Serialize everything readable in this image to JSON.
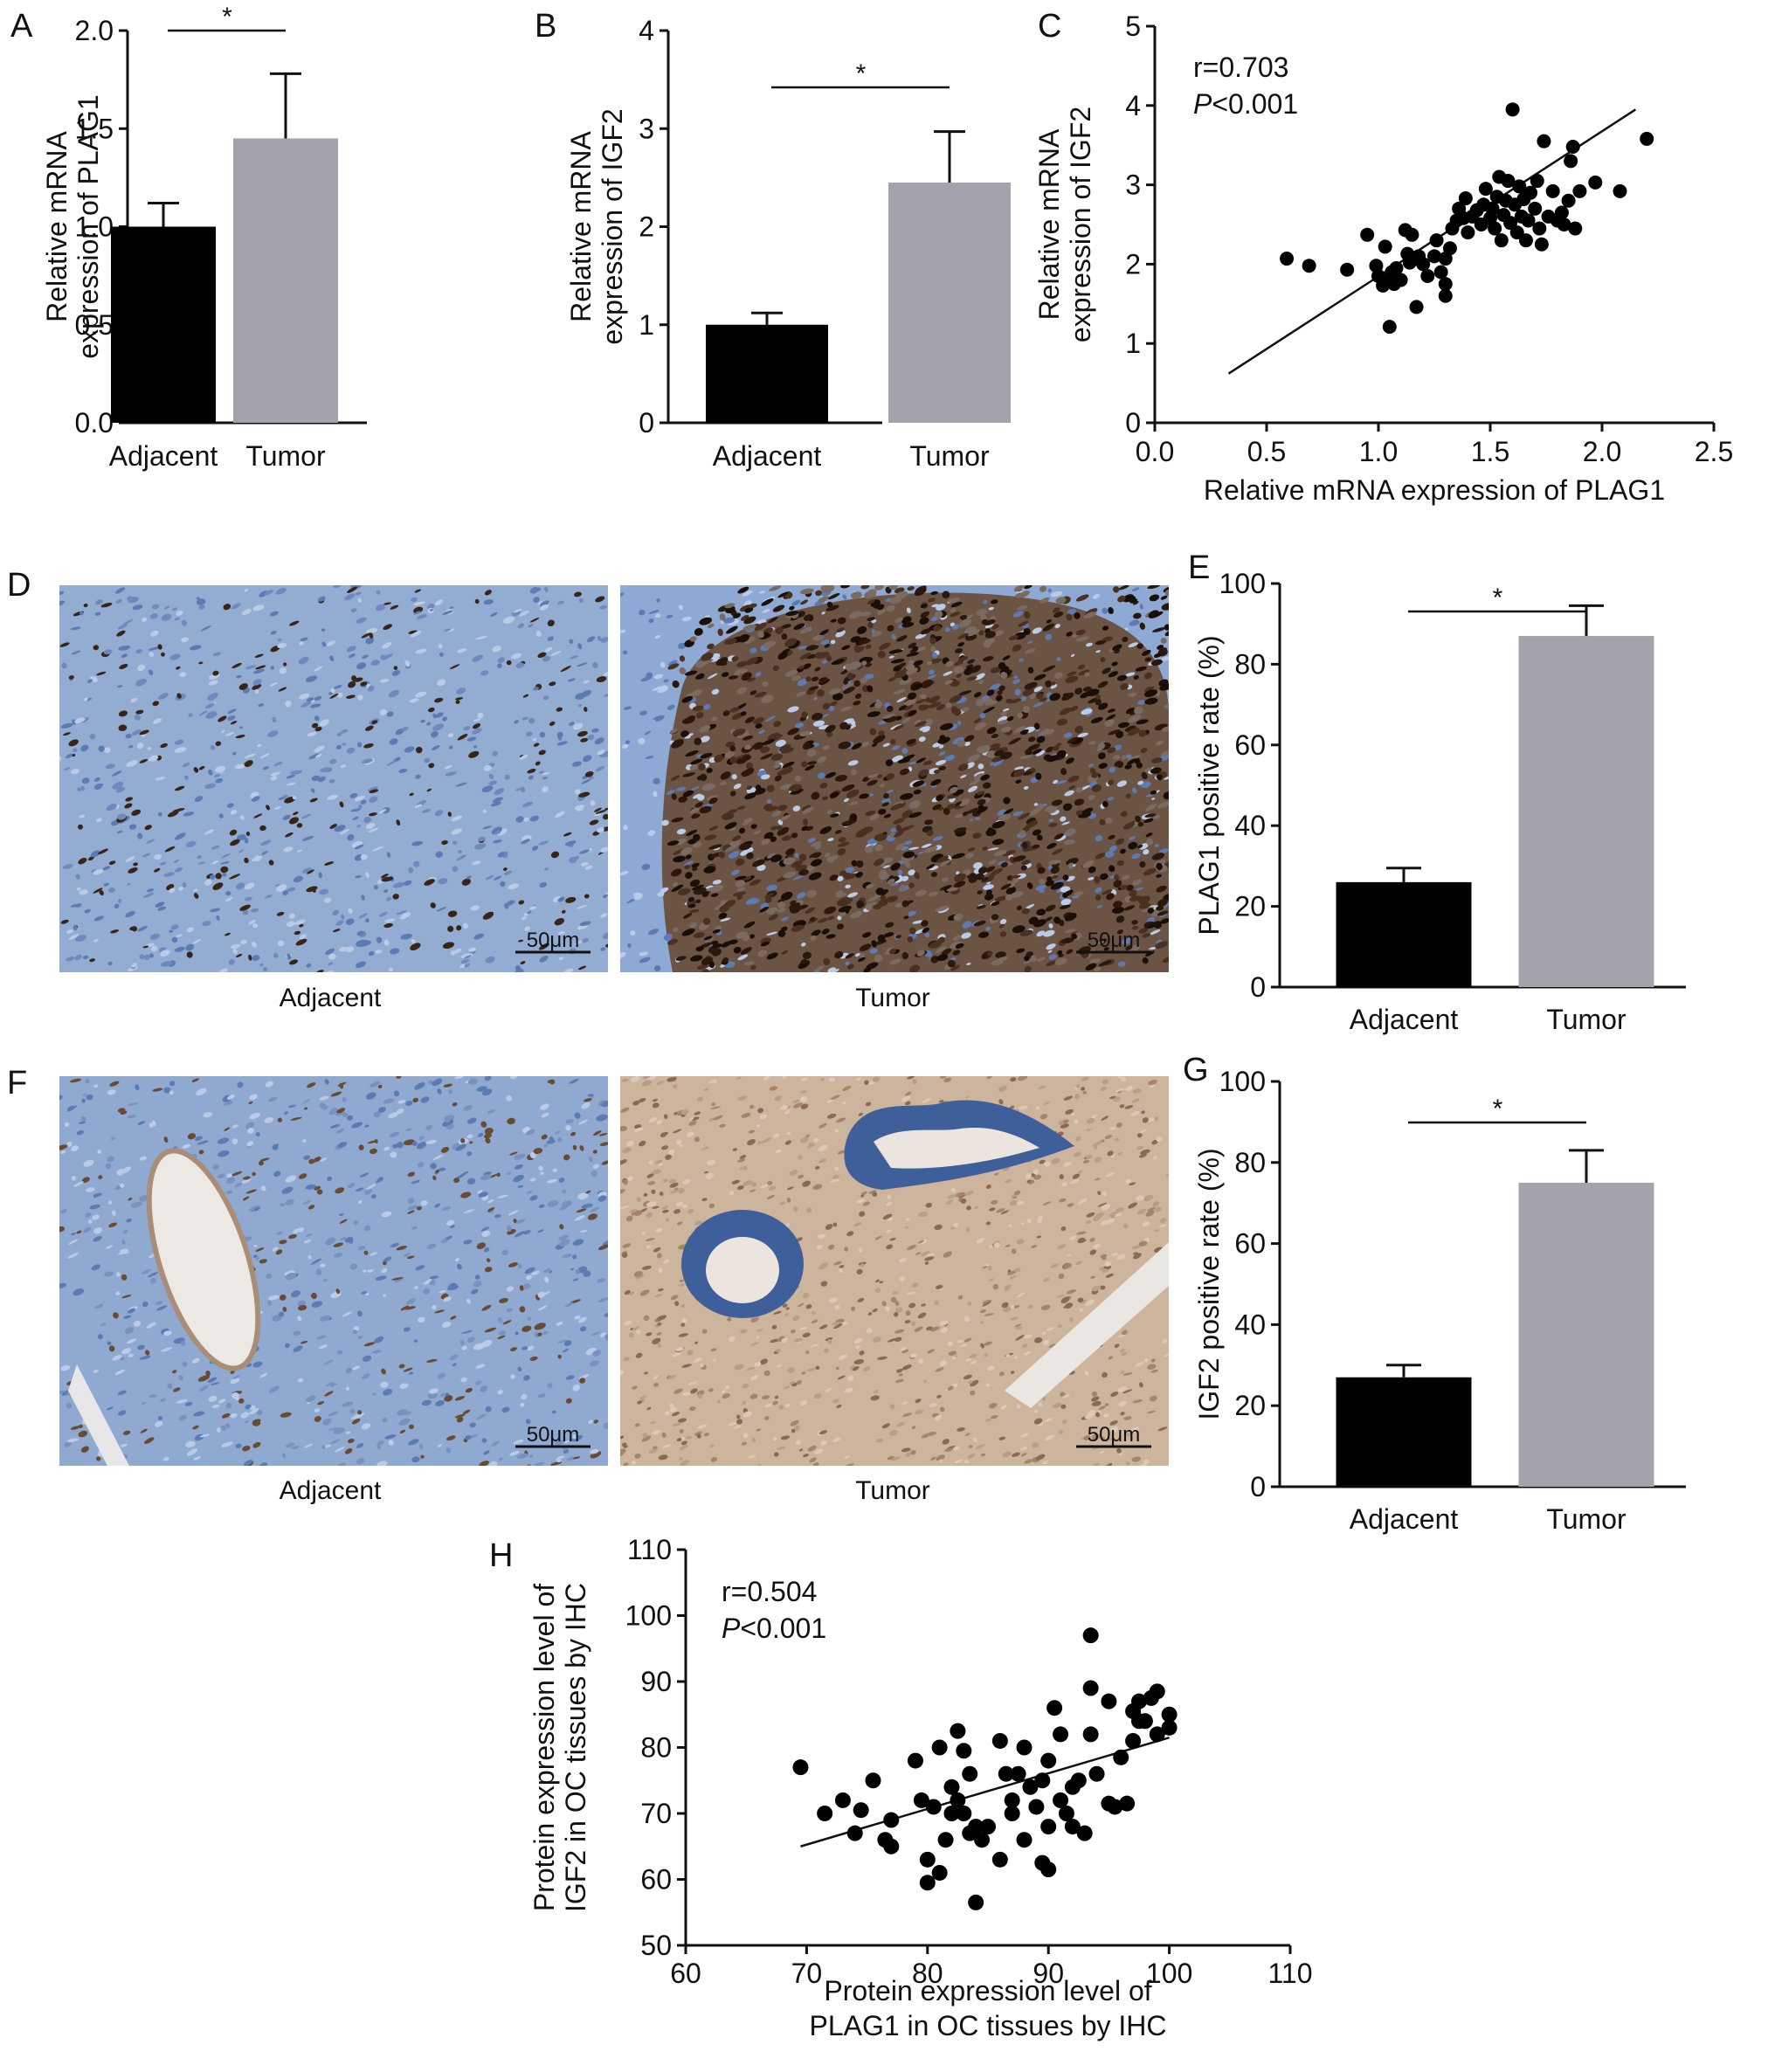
{
  "panels": {
    "A": {
      "letter": "A"
    },
    "B": {
      "letter": "B"
    },
    "C": {
      "letter": "C"
    },
    "D": {
      "letter": "D",
      "left_label": "Adjacent",
      "right_label": "Tumor",
      "scale_left": "50μm",
      "scale_right": "50μm"
    },
    "E": {
      "letter": "E"
    },
    "F": {
      "letter": "F",
      "left_label": "Adjacent",
      "right_label": "Tumor",
      "scale_left": "50μm",
      "scale_right": "50μm"
    },
    "G": {
      "letter": "G"
    },
    "H": {
      "letter": "H"
    }
  },
  "colors": {
    "adjacent_bar": "#000000",
    "tumor_bar": "#a3a3ab",
    "he_blue": "#8aa6cf",
    "dab_brown": "#3a2416",
    "ihc_beige": "#c8ad92"
  },
  "chart_data": [
    {
      "id": "A",
      "type": "bar",
      "categories": [
        "Adjacent",
        "Tumor"
      ],
      "values": [
        1.0,
        1.45
      ],
      "errors": [
        0.12,
        0.33
      ],
      "ylabel": [
        "Relative mRNA",
        "expression of PLAG1"
      ],
      "ylim": [
        0,
        2.0
      ],
      "yticks": [
        "0.0",
        "0.5",
        "1.0",
        "1.5",
        "2.0"
      ],
      "significance": "*"
    },
    {
      "id": "B",
      "type": "bar",
      "categories": [
        "Adjacent",
        "Tumor"
      ],
      "values": [
        1.0,
        2.45
      ],
      "errors": [
        0.12,
        0.52
      ],
      "ylabel": [
        "Relative mRNA",
        "expression of IGF2"
      ],
      "ylim": [
        0,
        4
      ],
      "yticks": [
        "0",
        "1",
        "2",
        "3",
        "4"
      ],
      "significance": "*"
    },
    {
      "id": "C",
      "type": "scatter",
      "xlabel": "Relative mRNA expression of PLAG1",
      "ylabel": [
        "Relative mRNA",
        "expression of IGF2"
      ],
      "xlim": [
        0.0,
        2.5
      ],
      "ylim": [
        0,
        5
      ],
      "xticks": [
        "0.0",
        "0.5",
        "1.0",
        "1.5",
        "2.0",
        "2.5"
      ],
      "yticks": [
        "0",
        "1",
        "2",
        "3",
        "4",
        "5"
      ],
      "stat_r": "r=0.703",
      "stat_p_letter": "P",
      "stat_p_rest": "<0.001",
      "fit": {
        "x": [
          0.33,
          2.15
        ],
        "y": [
          0.62,
          3.95
        ]
      },
      "points": [
        [
          0.59,
          2.07
        ],
        [
          0.69,
          1.98
        ],
        [
          0.86,
          1.93
        ],
        [
          0.95,
          2.37
        ],
        [
          0.99,
          1.98
        ],
        [
          1.0,
          1.85
        ],
        [
          1.02,
          1.73
        ],
        [
          1.03,
          2.22
        ],
        [
          1.04,
          1.78
        ],
        [
          1.05,
          1.21
        ],
        [
          1.06,
          1.9
        ],
        [
          1.07,
          1.75
        ],
        [
          1.08,
          1.95
        ],
        [
          1.1,
          1.8
        ],
        [
          1.12,
          2.43
        ],
        [
          1.13,
          2.13
        ],
        [
          1.14,
          2.02
        ],
        [
          1.15,
          2.37
        ],
        [
          1.17,
          1.46
        ],
        [
          1.18,
          2.1
        ],
        [
          1.2,
          2.0
        ],
        [
          1.22,
          1.85
        ],
        [
          1.25,
          2.1
        ],
        [
          1.26,
          2.3
        ],
        [
          1.28,
          1.9
        ],
        [
          1.3,
          1.6
        ],
        [
          1.3,
          1.75
        ],
        [
          1.3,
          2.07
        ],
        [
          1.32,
          2.2
        ],
        [
          1.33,
          2.45
        ],
        [
          1.35,
          2.55
        ],
        [
          1.36,
          2.7
        ],
        [
          1.38,
          2.58
        ],
        [
          1.39,
          2.83
        ],
        [
          1.4,
          2.4
        ],
        [
          1.42,
          2.6
        ],
        [
          1.44,
          2.68
        ],
        [
          1.46,
          2.5
        ],
        [
          1.47,
          2.75
        ],
        [
          1.48,
          2.95
        ],
        [
          1.5,
          2.58
        ],
        [
          1.51,
          2.7
        ],
        [
          1.52,
          2.45
        ],
        [
          1.53,
          2.85
        ],
        [
          1.54,
          3.1
        ],
        [
          1.55,
          2.3
        ],
        [
          1.56,
          2.62
        ],
        [
          1.57,
          2.8
        ],
        [
          1.58,
          3.05
        ],
        [
          1.59,
          2.52
        ],
        [
          1.6,
          3.95
        ],
        [
          1.61,
          2.75
        ],
        [
          1.62,
          2.4
        ],
        [
          1.63,
          2.98
        ],
        [
          1.64,
          2.6
        ],
        [
          1.65,
          2.82
        ],
        [
          1.66,
          2.3
        ],
        [
          1.67,
          2.55
        ],
        [
          1.68,
          2.9
        ],
        [
          1.7,
          2.7
        ],
        [
          1.71,
          3.05
        ],
        [
          1.72,
          2.45
        ],
        [
          1.73,
          2.25
        ],
        [
          1.74,
          3.55
        ],
        [
          1.76,
          2.6
        ],
        [
          1.78,
          2.92
        ],
        [
          1.8,
          2.55
        ],
        [
          1.82,
          2.65
        ],
        [
          1.83,
          2.5
        ],
        [
          1.85,
          2.8
        ],
        [
          1.86,
          3.3
        ],
        [
          1.87,
          3.48
        ],
        [
          1.88,
          2.45
        ],
        [
          1.9,
          2.92
        ],
        [
          1.97,
          3.03
        ],
        [
          2.08,
          2.92
        ],
        [
          2.2,
          3.58
        ]
      ]
    },
    {
      "id": "E",
      "type": "bar",
      "categories": [
        "Adjacent",
        "Tumor"
      ],
      "values": [
        26.0,
        87.0
      ],
      "errors": [
        3.5,
        7.5
      ],
      "ylabel": [
        "PLAG1 positive rate (%)"
      ],
      "ylim": [
        0,
        100
      ],
      "yticks": [
        "0",
        "20",
        "40",
        "60",
        "80",
        "100"
      ],
      "significance": "*"
    },
    {
      "id": "G",
      "type": "bar",
      "categories": [
        "Adjacent",
        "Tumor"
      ],
      "values": [
        27.0,
        75.0
      ],
      "errors": [
        3.0,
        8.0
      ],
      "ylabel": [
        "IGF2 positive rate (%)"
      ],
      "ylim": [
        0,
        100
      ],
      "yticks": [
        "0",
        "20",
        "40",
        "60",
        "80",
        "100"
      ],
      "significance": "*"
    },
    {
      "id": "H",
      "type": "scatter",
      "xlabel": [
        "Protein expression level of",
        "PLAG1 in OC tissues by IHC"
      ],
      "ylabel": [
        "Protein expression level of",
        "IGF2 in OC tissues by IHC"
      ],
      "xlim": [
        60,
        110
      ],
      "ylim": [
        50,
        110
      ],
      "xticks": [
        "60",
        "70",
        "80",
        "90",
        "100",
        "110"
      ],
      "yticks": [
        "50",
        "60",
        "70",
        "80",
        "90",
        "100",
        "110"
      ],
      "stat_r": "r=0.504",
      "stat_p_letter": "P",
      "stat_p_rest": "<0.001",
      "fit": {
        "x": [
          69.5,
          100
        ],
        "y": [
          65.0,
          81.5
        ]
      },
      "points": [
        [
          69.5,
          77
        ],
        [
          71.5,
          70
        ],
        [
          73,
          72
        ],
        [
          74,
          67
        ],
        [
          74.5,
          70.5
        ],
        [
          75.5,
          75
        ],
        [
          76.5,
          66
        ],
        [
          77,
          69
        ],
        [
          77,
          65
        ],
        [
          79,
          78
        ],
        [
          79.5,
          72
        ],
        [
          80,
          63
        ],
        [
          80.5,
          71
        ],
        [
          80,
          59.5
        ],
        [
          81,
          80
        ],
        [
          81.5,
          66
        ],
        [
          81,
          61
        ],
        [
          82,
          70
        ],
        [
          82,
          74
        ],
        [
          82.5,
          72
        ],
        [
          82.5,
          82.5
        ],
        [
          83,
          70
        ],
        [
          83,
          79.5
        ],
        [
          83.5,
          67
        ],
        [
          83.5,
          76
        ],
        [
          84,
          68
        ],
        [
          84,
          56.5
        ],
        [
          84.5,
          66
        ],
        [
          85,
          68
        ],
        [
          86,
          63
        ],
        [
          86,
          81
        ],
        [
          86.5,
          76
        ],
        [
          87,
          72
        ],
        [
          87,
          70
        ],
        [
          87.5,
          76
        ],
        [
          88,
          80
        ],
        [
          88,
          66
        ],
        [
          88.5,
          74
        ],
        [
          89,
          71
        ],
        [
          89.5,
          75
        ],
        [
          89.5,
          62.5
        ],
        [
          90,
          61.5
        ],
        [
          90,
          68
        ],
        [
          90,
          78
        ],
        [
          90.5,
          86
        ],
        [
          91,
          72
        ],
        [
          91,
          82
        ],
        [
          91.5,
          70
        ],
        [
          92,
          74
        ],
        [
          92,
          68
        ],
        [
          92.5,
          75
        ],
        [
          93,
          67
        ],
        [
          93.5,
          82
        ],
        [
          93.5,
          89
        ],
        [
          93.5,
          97
        ],
        [
          94,
          76
        ],
        [
          95,
          71.5
        ],
        [
          95,
          87
        ],
        [
          95.5,
          71
        ],
        [
          96,
          78.5
        ],
        [
          96.5,
          71.5
        ],
        [
          97,
          85.5
        ],
        [
          97,
          81
        ],
        [
          97.5,
          84
        ],
        [
          97.5,
          87
        ],
        [
          98,
          84
        ],
        [
          98.5,
          87.5
        ],
        [
          99,
          88.5
        ],
        [
          99,
          82
        ],
        [
          100,
          85
        ],
        [
          100,
          83
        ]
      ]
    }
  ]
}
